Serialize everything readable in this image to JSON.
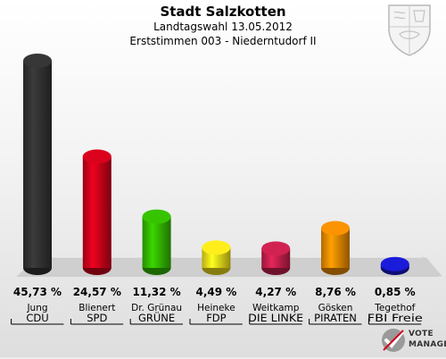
{
  "header": {
    "title": "Stadt Salzkotten",
    "subtitle": "Landtagswahl 13.05.2012",
    "subtitle2": "Erststimmen 003 - Niederntudorf II"
  },
  "brand": {
    "line1": "VOTE",
    "line2": "MANAGER"
  },
  "chart_data": {
    "type": "bar",
    "title": "Stadt Salzkotten",
    "ylim": [
      0,
      50
    ],
    "value_unit": "%",
    "categories": [
      "Jung",
      "Blienert",
      "Dr. Grünau",
      "Heineke",
      "Weitkamp",
      "Gösken",
      "Tegethof"
    ],
    "parties": [
      "CDU",
      "SPD",
      "GRÜNE",
      "FDP",
      "DIE LINKE",
      "PIRATEN",
      "FBI Freie"
    ],
    "values": [
      45.73,
      24.57,
      11.32,
      4.49,
      4.27,
      8.76,
      0.85
    ],
    "value_labels": [
      "45,73 %",
      "24,57 %",
      "11,32 %",
      "4,49 %",
      "4,27 %",
      "8,76 %",
      "0,85 %"
    ],
    "colors": [
      "#333333",
      "#d0021b",
      "#33bb00",
      "#f5e31a",
      "#c8204e",
      "#f08c00",
      "#1a1ad0"
    ]
  }
}
